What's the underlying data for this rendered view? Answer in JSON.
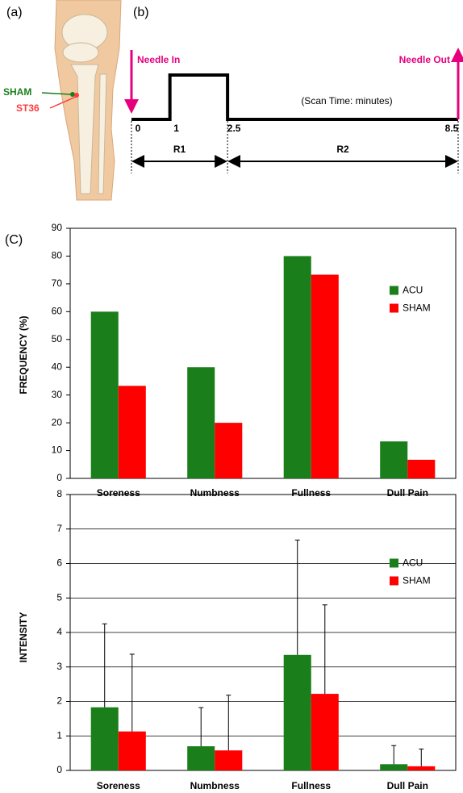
{
  "panel_a": {
    "label": "(a)",
    "sham_label": "SHAM",
    "st36_label": "ST36"
  },
  "panel_b": {
    "label": "(b)",
    "needle_in": "Needle In",
    "needle_out": "Needle Out",
    "scan_time": "(Scan Time: minutes)",
    "ticks": [
      0,
      1,
      2.5,
      8.5
    ],
    "r1": "R1",
    "r2": "R2",
    "color": "#e6007e"
  },
  "panel_c_label": "(C)",
  "chart_data": [
    {
      "type": "bar",
      "ylabel": "FREQUENCY (%)",
      "categories": [
        "Soreness",
        "Numbness",
        "Fullness",
        "Dull Pain"
      ],
      "series": [
        {
          "name": "ACU",
          "color": "#1a7f1a",
          "values": [
            60,
            40,
            80,
            13.3
          ]
        },
        {
          "name": "SHAM",
          "color": "#ff0000",
          "values": [
            33.3,
            20,
            73.3,
            6.7
          ]
        }
      ],
      "ylim": [
        0,
        90
      ],
      "yticks": [
        0,
        10,
        20,
        30,
        40,
        50,
        60,
        70,
        80,
        90
      ],
      "grid": false,
      "legend": "right"
    },
    {
      "type": "bar",
      "ylabel": "INTENSITY",
      "categories": [
        "Soreness",
        "Numbness",
        "Fullness",
        "Dull Pain"
      ],
      "series": [
        {
          "name": "ACU",
          "color": "#1a7f1a",
          "values": [
            1.83,
            0.7,
            3.35,
            0.18
          ],
          "errors": [
            2.42,
            1.12,
            3.33,
            0.54
          ]
        },
        {
          "name": "SHAM",
          "color": "#ff0000",
          "values": [
            1.13,
            0.58,
            2.22,
            0.12
          ],
          "errors": [
            2.24,
            1.6,
            2.58,
            0.5
          ]
        }
      ],
      "ylim": [
        0,
        8
      ],
      "yticks": [
        0,
        1,
        2,
        3,
        4,
        5,
        6,
        7,
        8
      ],
      "grid": true,
      "legend": "right"
    }
  ]
}
